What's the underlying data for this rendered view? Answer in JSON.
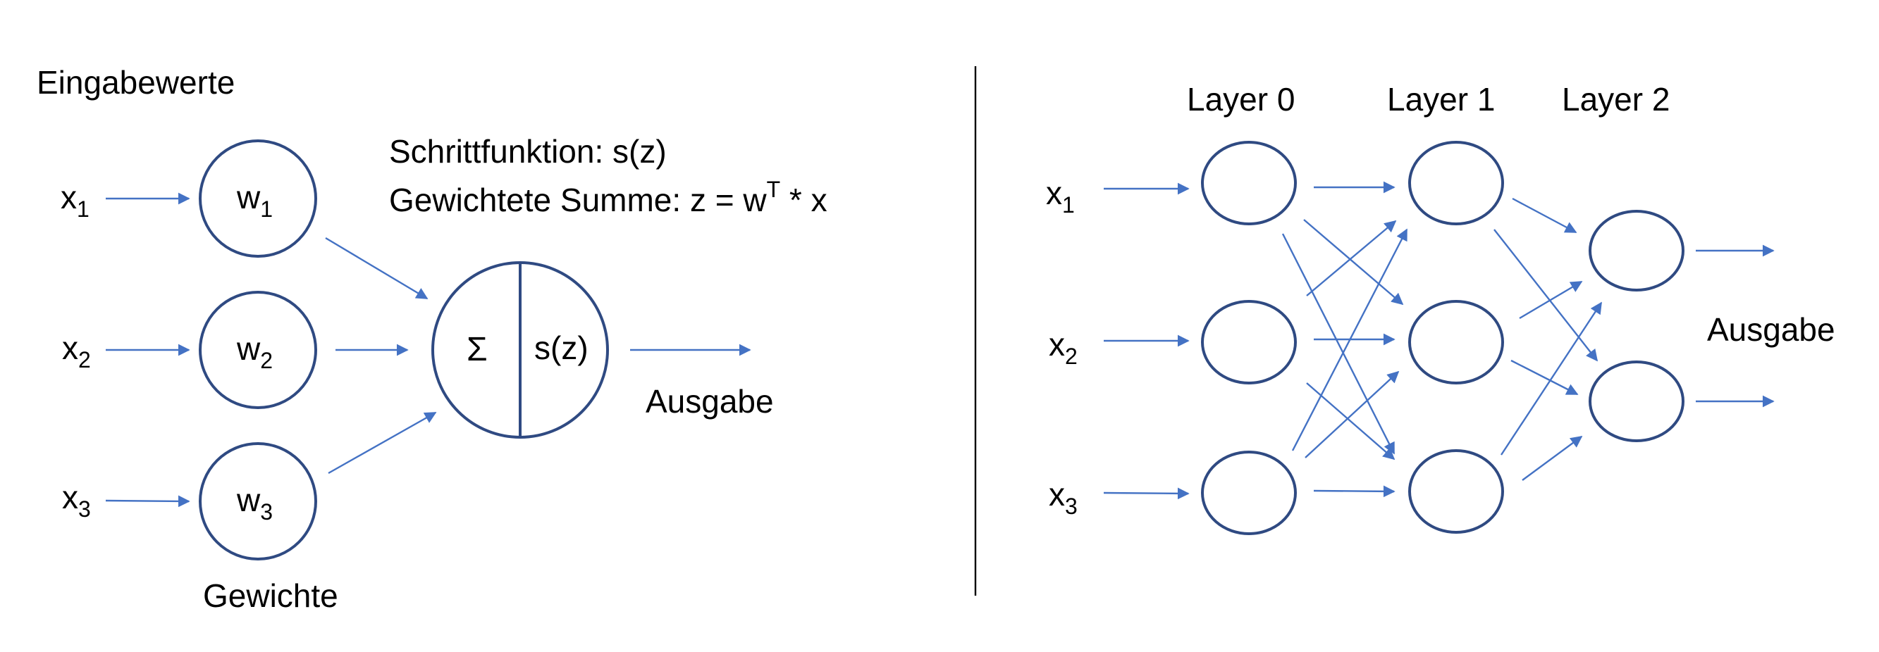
{
  "perceptron": {
    "inputs_label": "Eingabewerte",
    "step_function": "Schrittfunktion: s(z)",
    "weighted_sum_prefix": "Gewichtete Summe: z = w",
    "weighted_sum_sup": "T",
    "weighted_sum_suffix": " * x",
    "inputs": [
      {
        "base": "x",
        "sub": "1"
      },
      {
        "base": "x",
        "sub": "2"
      },
      {
        "base": "x",
        "sub": "3"
      }
    ],
    "weights": [
      {
        "base": "w",
        "sub": "1"
      },
      {
        "base": "w",
        "sub": "2"
      },
      {
        "base": "w",
        "sub": "3"
      }
    ],
    "weights_label": "Gewichte",
    "sum_symbol": "Σ",
    "activation": "s(z)",
    "output_label": "Ausgabe"
  },
  "network": {
    "layers": [
      "Layer 0",
      "Layer 1",
      "Layer 2"
    ],
    "inputs": [
      {
        "base": "x",
        "sub": "1"
      },
      {
        "base": "x",
        "sub": "2"
      },
      {
        "base": "x",
        "sub": "3"
      }
    ],
    "output_label": "Ausgabe"
  },
  "colors": {
    "arrow": "#4472c4",
    "node_stroke": "#2f4a82",
    "text": "#000000"
  }
}
